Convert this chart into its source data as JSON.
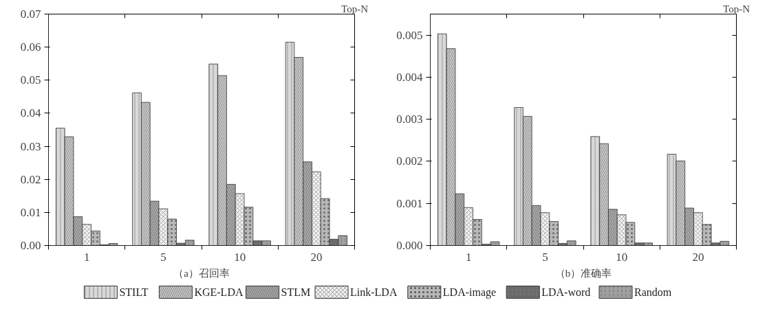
{
  "chart_data": [
    {
      "type": "bar",
      "title": "（a）召回率",
      "xlabel": "Top-N",
      "categories": [
        "1",
        "5",
        "10",
        "20"
      ],
      "legend": "bottom",
      "grid": false,
      "ylim": [
        0,
        0.07
      ],
      "yticks": [
        {
          "value": 0,
          "label": "0.00"
        },
        0.01,
        0.02,
        0.03,
        0.04,
        0.05,
        0.06,
        0.07
      ],
      "series": [
        {
          "name": "STILT",
          "color": "#d9d9d9",
          "values": [
            0.0355,
            0.0462,
            0.0549,
            0.0615
          ]
        },
        {
          "name": "KGE-LDA",
          "color": "#c8c8c8",
          "values": [
            0.0329,
            0.0433,
            0.0514,
            0.0569
          ]
        },
        {
          "name": "STLM",
          "color": "#a8a8a8",
          "values": [
            0.0087,
            0.0134,
            0.0185,
            0.0253
          ]
        },
        {
          "name": "Link-LDA",
          "color": "#f2f2f2",
          "values": [
            0.0064,
            0.0111,
            0.0157,
            0.0223
          ]
        },
        {
          "name": "LDA-image",
          "color": "#b8b8b8",
          "values": [
            0.0044,
            0.008,
            0.0116,
            0.0142
          ]
        },
        {
          "name": "LDA-word",
          "color": "#707070",
          "values": [
            0.0002,
            0.0007,
            0.0014,
            0.0019
          ]
        },
        {
          "name": "Random",
          "color": "#a0a0a0",
          "values": [
            0.0006,
            0.0016,
            0.0014,
            0.003
          ]
        }
      ]
    },
    {
      "type": "bar",
      "title": "（b）准确率",
      "xlabel": "Top-N",
      "categories": [
        "1",
        "5",
        "10",
        "20"
      ],
      "grid": false,
      "ylim": [
        0,
        0.0055
      ],
      "yticks": [
        {
          "value": 0,
          "label": "0.000"
        },
        {
          "value": 0.001,
          "label": "0.001"
        },
        {
          "value": 0.002,
          "label": "0.002"
        },
        {
          "value": 0.003,
          "label": "0.003"
        },
        {
          "value": 0.004,
          "label": "0.004"
        },
        {
          "value": 0.005,
          "label": "0.005"
        }
      ],
      "series": [
        {
          "color": "#d9d9d9",
          "values": [
            0.00503,
            0.00328,
            0.00259,
            0.00217
          ]
        },
        {
          "color": "#c8c8c8",
          "values": [
            0.00468,
            0.00307,
            0.00242,
            0.00201
          ]
        },
        {
          "color": "#a8a8a8",
          "values": [
            0.00123,
            0.00095,
            0.00086,
            0.00089
          ]
        },
        {
          "color": "#f2f2f2",
          "values": [
            0.0009,
            0.00078,
            0.00073,
            0.00078
          ]
        },
        {
          "color": "#b8b8b8",
          "values": [
            0.00062,
            0.00057,
            0.00055,
            0.0005
          ]
        },
        {
          "color": "#707070",
          "values": [
            3e-05,
            5e-05,
            6e-05,
            6e-05
          ]
        },
        {
          "color": "#a0a0a0",
          "values": [
            9e-05,
            0.00011,
            6e-05,
            0.0001
          ]
        }
      ]
    }
  ]
}
